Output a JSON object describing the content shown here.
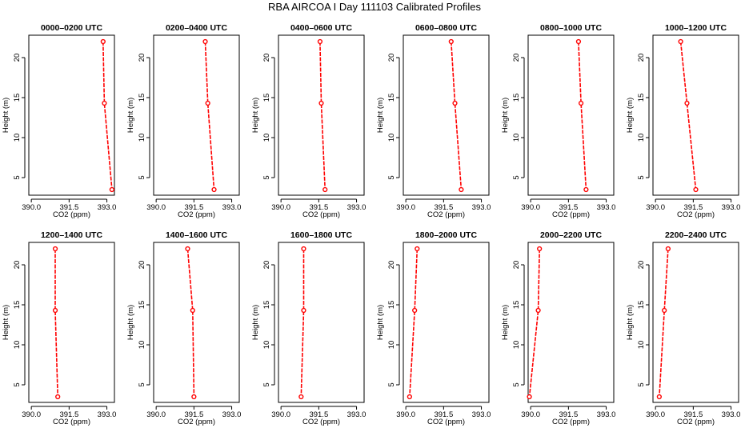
{
  "figure": {
    "title": "RBA AIRCOA I  Day 111103  Calibrated Profiles"
  },
  "style": {
    "series_color": "#ff0000",
    "frame_color": "#000000"
  },
  "chart_data": [
    {
      "type": "line",
      "title": "0000–0200 UTC",
      "xlabel": "CO2 (ppm)",
      "ylabel": "Height (m)",
      "xlim": [
        389.9,
        393.3
      ],
      "ylim": [
        2.8,
        22.8
      ],
      "xticks": [
        "390.0",
        "391.5",
        "393.0"
      ],
      "yticks": [
        "5",
        "10",
        "15",
        "20"
      ],
      "x": [
        392.85,
        392.9,
        393.2
      ],
      "y": [
        22,
        14.3,
        3.5
      ]
    },
    {
      "type": "line",
      "title": "0200–0400 UTC",
      "xlabel": "CO2 (ppm)",
      "ylabel": "Height (m)",
      "xlim": [
        389.9,
        393.3
      ],
      "ylim": [
        2.8,
        22.8
      ],
      "xticks": [
        "390.0",
        "391.5",
        "393.0"
      ],
      "yticks": [
        "5",
        "10",
        "15",
        "20"
      ],
      "x": [
        391.95,
        392.05,
        392.3
      ],
      "y": [
        22,
        14.3,
        3.5
      ]
    },
    {
      "type": "line",
      "title": "0400–0600 UTC",
      "xlabel": "CO2 (ppm)",
      "ylabel": "Height (m)",
      "xlim": [
        389.9,
        393.3
      ],
      "ylim": [
        2.8,
        22.8
      ],
      "xticks": [
        "390.0",
        "391.5",
        "393.0"
      ],
      "yticks": [
        "5",
        "10",
        "15",
        "20"
      ],
      "x": [
        391.55,
        391.6,
        391.75
      ],
      "y": [
        22,
        14.3,
        3.5
      ]
    },
    {
      "type": "line",
      "title": "0600–0800 UTC",
      "xlabel": "CO2 (ppm)",
      "ylabel": "Height (m)",
      "xlim": [
        389.9,
        393.3
      ],
      "ylim": [
        2.8,
        22.8
      ],
      "xticks": [
        "390.0",
        "391.5",
        "393.0"
      ],
      "yticks": [
        "5",
        "10",
        "15",
        "20"
      ],
      "x": [
        391.8,
        391.95,
        392.2
      ],
      "y": [
        22,
        14.3,
        3.5
      ]
    },
    {
      "type": "line",
      "title": "0800–1000 UTC",
      "xlabel": "CO2 (ppm)",
      "ylabel": "Height (m)",
      "xlim": [
        389.9,
        393.3
      ],
      "ylim": [
        2.8,
        22.8
      ],
      "xticks": [
        "390.0",
        "391.5",
        "393.0"
      ],
      "yticks": [
        "5",
        "10",
        "15",
        "20"
      ],
      "x": [
        391.9,
        392.0,
        392.2
      ],
      "y": [
        22,
        14.3,
        3.5
      ]
    },
    {
      "type": "line",
      "title": "1000–1200 UTC",
      "xlabel": "CO2 (ppm)",
      "ylabel": "Height (m)",
      "xlim": [
        389.9,
        393.3
      ],
      "ylim": [
        2.8,
        22.8
      ],
      "xticks": [
        "390.0",
        "391.5",
        "393.0"
      ],
      "yticks": [
        "5",
        "10",
        "15",
        "20"
      ],
      "x": [
        391.0,
        391.25,
        391.6
      ],
      "y": [
        22,
        14.3,
        3.5
      ]
    },
    {
      "type": "line",
      "title": "1200–1400 UTC",
      "xlabel": "CO2 (ppm)",
      "ylabel": "Height (m)",
      "xlim": [
        389.9,
        393.3
      ],
      "ylim": [
        2.8,
        22.8
      ],
      "xticks": [
        "390.0",
        "391.5",
        "393.0"
      ],
      "yticks": [
        "5",
        "10",
        "15",
        "20"
      ],
      "x": [
        390.95,
        390.95,
        391.05
      ],
      "y": [
        22,
        14.3,
        3.5
      ]
    },
    {
      "type": "line",
      "title": "1400–1600 UTC",
      "xlabel": "CO2 (ppm)",
      "ylabel": "Height (m)",
      "xlim": [
        389.9,
        393.3
      ],
      "ylim": [
        2.8,
        22.8
      ],
      "xticks": [
        "390.0",
        "391.5",
        "393.0"
      ],
      "yticks": [
        "5",
        "10",
        "15",
        "20"
      ],
      "x": [
        391.25,
        391.45,
        391.5
      ],
      "y": [
        22,
        14.3,
        3.5
      ]
    },
    {
      "type": "line",
      "title": "1600–1800 UTC",
      "xlabel": "CO2 (ppm)",
      "ylabel": "Height (m)",
      "xlim": [
        389.9,
        393.3
      ],
      "ylim": [
        2.8,
        22.8
      ],
      "xticks": [
        "390.0",
        "391.5",
        "393.0"
      ],
      "yticks": [
        "5",
        "10",
        "15",
        "20"
      ],
      "x": [
        390.9,
        390.9,
        390.8
      ],
      "y": [
        22,
        14.3,
        3.5
      ]
    },
    {
      "type": "line",
      "title": "1800–2000 UTC",
      "xlabel": "CO2 (ppm)",
      "ylabel": "Height (m)",
      "xlim": [
        389.9,
        393.3
      ],
      "ylim": [
        2.8,
        22.8
      ],
      "xticks": [
        "390.0",
        "391.5",
        "393.0"
      ],
      "yticks": [
        "5",
        "10",
        "15",
        "20"
      ],
      "x": [
        390.45,
        390.35,
        390.15
      ],
      "y": [
        22,
        14.3,
        3.5
      ]
    },
    {
      "type": "line",
      "title": "2000–2200 UTC",
      "xlabel": "CO2 (ppm)",
      "ylabel": "Height (m)",
      "xlim": [
        389.9,
        393.3
      ],
      "ylim": [
        2.8,
        22.8
      ],
      "xticks": [
        "390.0",
        "391.5",
        "393.0"
      ],
      "yticks": [
        "5",
        "10",
        "15",
        "20"
      ],
      "x": [
        390.35,
        390.3,
        389.95
      ],
      "y": [
        22,
        14.3,
        3.5
      ]
    },
    {
      "type": "line",
      "title": "2200–2400 UTC",
      "xlabel": "CO2 (ppm)",
      "ylabel": "Height (m)",
      "xlim": [
        389.9,
        393.3
      ],
      "ylim": [
        2.8,
        22.8
      ],
      "xticks": [
        "390.0",
        "391.5",
        "393.0"
      ],
      "yticks": [
        "5",
        "10",
        "15",
        "20"
      ],
      "x": [
        390.5,
        390.35,
        390.15
      ],
      "y": [
        22,
        14.3,
        3.5
      ]
    }
  ]
}
